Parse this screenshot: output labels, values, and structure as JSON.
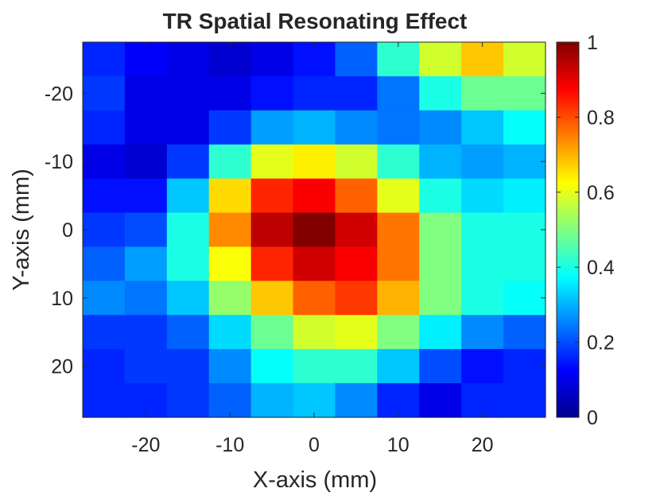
{
  "chart_data": {
    "type": "heatmap",
    "title": "TR Spatial Resonating Effect",
    "xlabel": "X-axis (mm)",
    "ylabel": "Y-axis (mm)",
    "x": [
      -25,
      -20,
      -15,
      -10,
      -5,
      0,
      5,
      10,
      15,
      20,
      25
    ],
    "y": [
      -25,
      -20,
      -15,
      -10,
      -5,
      0,
      5,
      10,
      15,
      20,
      25
    ],
    "xlim": [
      -27.5,
      27.5
    ],
    "ylim": [
      -27.5,
      27.5
    ],
    "x_ticks": [
      -20,
      -10,
      0,
      10,
      20
    ],
    "x_tick_labels": [
      "-20",
      "-10",
      "0",
      "10",
      "20"
    ],
    "y_ticks": [
      -20,
      -10,
      0,
      10,
      20
    ],
    "y_tick_labels": [
      "-20",
      "-10",
      "0",
      "10",
      "20"
    ],
    "y_direction": "reverse",
    "colormap": "jet",
    "clim": [
      0,
      1
    ],
    "colorbar_ticks": [
      0,
      0.2,
      0.4,
      0.6,
      0.8,
      1
    ],
    "colorbar_tick_labels": [
      "0",
      "0.2",
      "0.4",
      "0.6",
      "0.8",
      "1"
    ],
    "values": [
      [
        0.16,
        0.12,
        0.1,
        0.08,
        0.1,
        0.14,
        0.22,
        0.42,
        0.58,
        0.68,
        0.58
      ],
      [
        0.18,
        0.1,
        0.1,
        0.1,
        0.14,
        0.16,
        0.16,
        0.24,
        0.4,
        0.48,
        0.48
      ],
      [
        0.16,
        0.1,
        0.1,
        0.18,
        0.28,
        0.3,
        0.26,
        0.24,
        0.26,
        0.32,
        0.38
      ],
      [
        0.1,
        0.08,
        0.18,
        0.42,
        0.6,
        0.64,
        0.58,
        0.42,
        0.3,
        0.28,
        0.3
      ],
      [
        0.14,
        0.14,
        0.32,
        0.66,
        0.84,
        0.88,
        0.78,
        0.6,
        0.4,
        0.34,
        0.36
      ],
      [
        0.18,
        0.2,
        0.4,
        0.74,
        0.94,
        1.0,
        0.92,
        0.76,
        0.5,
        0.4,
        0.4
      ],
      [
        0.22,
        0.28,
        0.4,
        0.62,
        0.84,
        0.92,
        0.88,
        0.76,
        0.5,
        0.4,
        0.4
      ],
      [
        0.26,
        0.24,
        0.32,
        0.52,
        0.68,
        0.78,
        0.82,
        0.7,
        0.5,
        0.4,
        0.38
      ],
      [
        0.18,
        0.18,
        0.22,
        0.34,
        0.48,
        0.58,
        0.6,
        0.5,
        0.36,
        0.26,
        0.22
      ],
      [
        0.16,
        0.18,
        0.18,
        0.26,
        0.38,
        0.42,
        0.42,
        0.32,
        0.2,
        0.14,
        0.16
      ],
      [
        0.16,
        0.16,
        0.18,
        0.22,
        0.3,
        0.32,
        0.26,
        0.16,
        0.1,
        0.16,
        0.16
      ]
    ]
  }
}
